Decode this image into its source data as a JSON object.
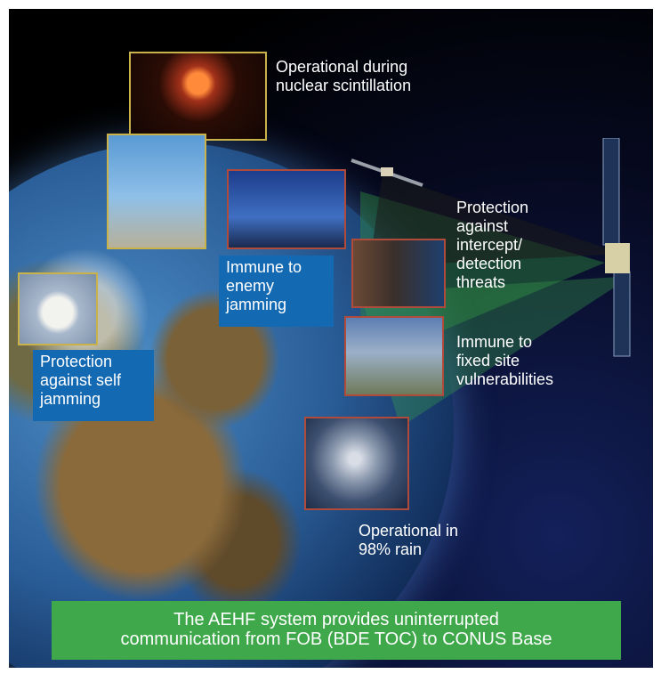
{
  "captions": {
    "nuclear": "Operational during\nnuclear scintillation",
    "intercept": "Protection\nagainst\nintercept/\ndetection\nthreats",
    "fixed_site": "Immune to\nfixed site\nvulnerabilities",
    "rain": "Operational in\n98% rain"
  },
  "boxes": {
    "jamming": "Immune to\nenemy\njamming",
    "self_jamming": "Protection\nagainst self\njamming"
  },
  "banner": "The AEHF system provides uninterrupted\ncommunication from FOB (BDE TOC) to CONUS Base",
  "colors": {
    "box_blue": "#1469b3",
    "banner_green": "#3ea84a",
    "photo_border_gold": "#c9b24a",
    "photo_border_red": "#b04a3a"
  },
  "icons": [
    "satellite-icon",
    "satellite-small-icon"
  ]
}
